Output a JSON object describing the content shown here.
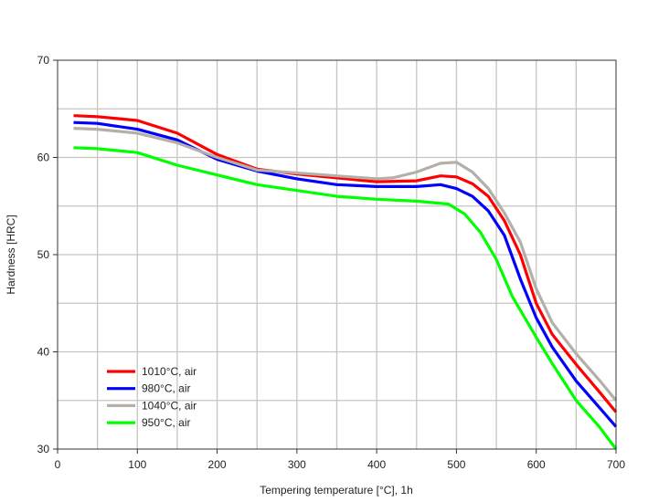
{
  "chart_data": {
    "type": "line",
    "title": "",
    "xlabel": "Tempering temperature [°C], 1h",
    "ylabel": "Hardness [HRC]",
    "xlim": [
      0,
      700
    ],
    "ylim": [
      30,
      70
    ],
    "xticks": [
      0,
      100,
      200,
      300,
      400,
      500,
      600,
      700
    ],
    "yticks": [
      30,
      40,
      50,
      60,
      70
    ],
    "grid": true,
    "legend_position": "bottom-left",
    "series": [
      {
        "name": "1010°C, air",
        "color": "#ff0000",
        "x": [
          20,
          50,
          100,
          150,
          200,
          250,
          300,
          350,
          400,
          450,
          480,
          500,
          520,
          540,
          560,
          580,
          600,
          620,
          650,
          680,
          700
        ],
        "y": [
          64.3,
          64.2,
          63.8,
          62.5,
          60.3,
          58.8,
          58.3,
          57.9,
          57.5,
          57.6,
          58.1,
          58.0,
          57.3,
          56.0,
          53.5,
          50.0,
          45.0,
          41.8,
          38.7,
          35.8,
          33.8
        ]
      },
      {
        "name": "980°C, air",
        "color": "#0000ff",
        "x": [
          20,
          50,
          100,
          150,
          200,
          250,
          300,
          350,
          400,
          450,
          480,
          500,
          520,
          540,
          560,
          580,
          600,
          620,
          650,
          680,
          700
        ],
        "y": [
          63.6,
          63.5,
          62.9,
          61.8,
          59.8,
          58.6,
          57.8,
          57.2,
          57.0,
          57.0,
          57.2,
          56.8,
          56.0,
          54.5,
          52.0,
          47.5,
          43.5,
          40.5,
          37.0,
          34.2,
          32.3
        ]
      },
      {
        "name": "1040°C, air",
        "color": "#b4b0a8",
        "x": [
          20,
          50,
          100,
          150,
          200,
          250,
          300,
          350,
          400,
          420,
          450,
          480,
          500,
          520,
          540,
          560,
          580,
          600,
          620,
          650,
          680,
          700
        ],
        "y": [
          63.0,
          62.9,
          62.5,
          61.5,
          60.0,
          58.7,
          58.4,
          58.1,
          57.8,
          57.9,
          58.5,
          59.4,
          59.5,
          58.5,
          56.8,
          54.3,
          51.3,
          46.5,
          43.0,
          39.8,
          37.0,
          35.0
        ]
      },
      {
        "name": "950°C, air",
        "color": "#00ff00",
        "x": [
          20,
          50,
          100,
          150,
          200,
          250,
          300,
          350,
          400,
          450,
          490,
          510,
          530,
          550,
          570,
          600,
          620,
          650,
          680,
          700
        ],
        "y": [
          61.0,
          60.9,
          60.5,
          59.2,
          58.2,
          57.2,
          56.6,
          56.0,
          55.7,
          55.5,
          55.2,
          54.2,
          52.3,
          49.5,
          45.7,
          41.5,
          38.8,
          35.0,
          32.2,
          30.0
        ]
      }
    ]
  }
}
